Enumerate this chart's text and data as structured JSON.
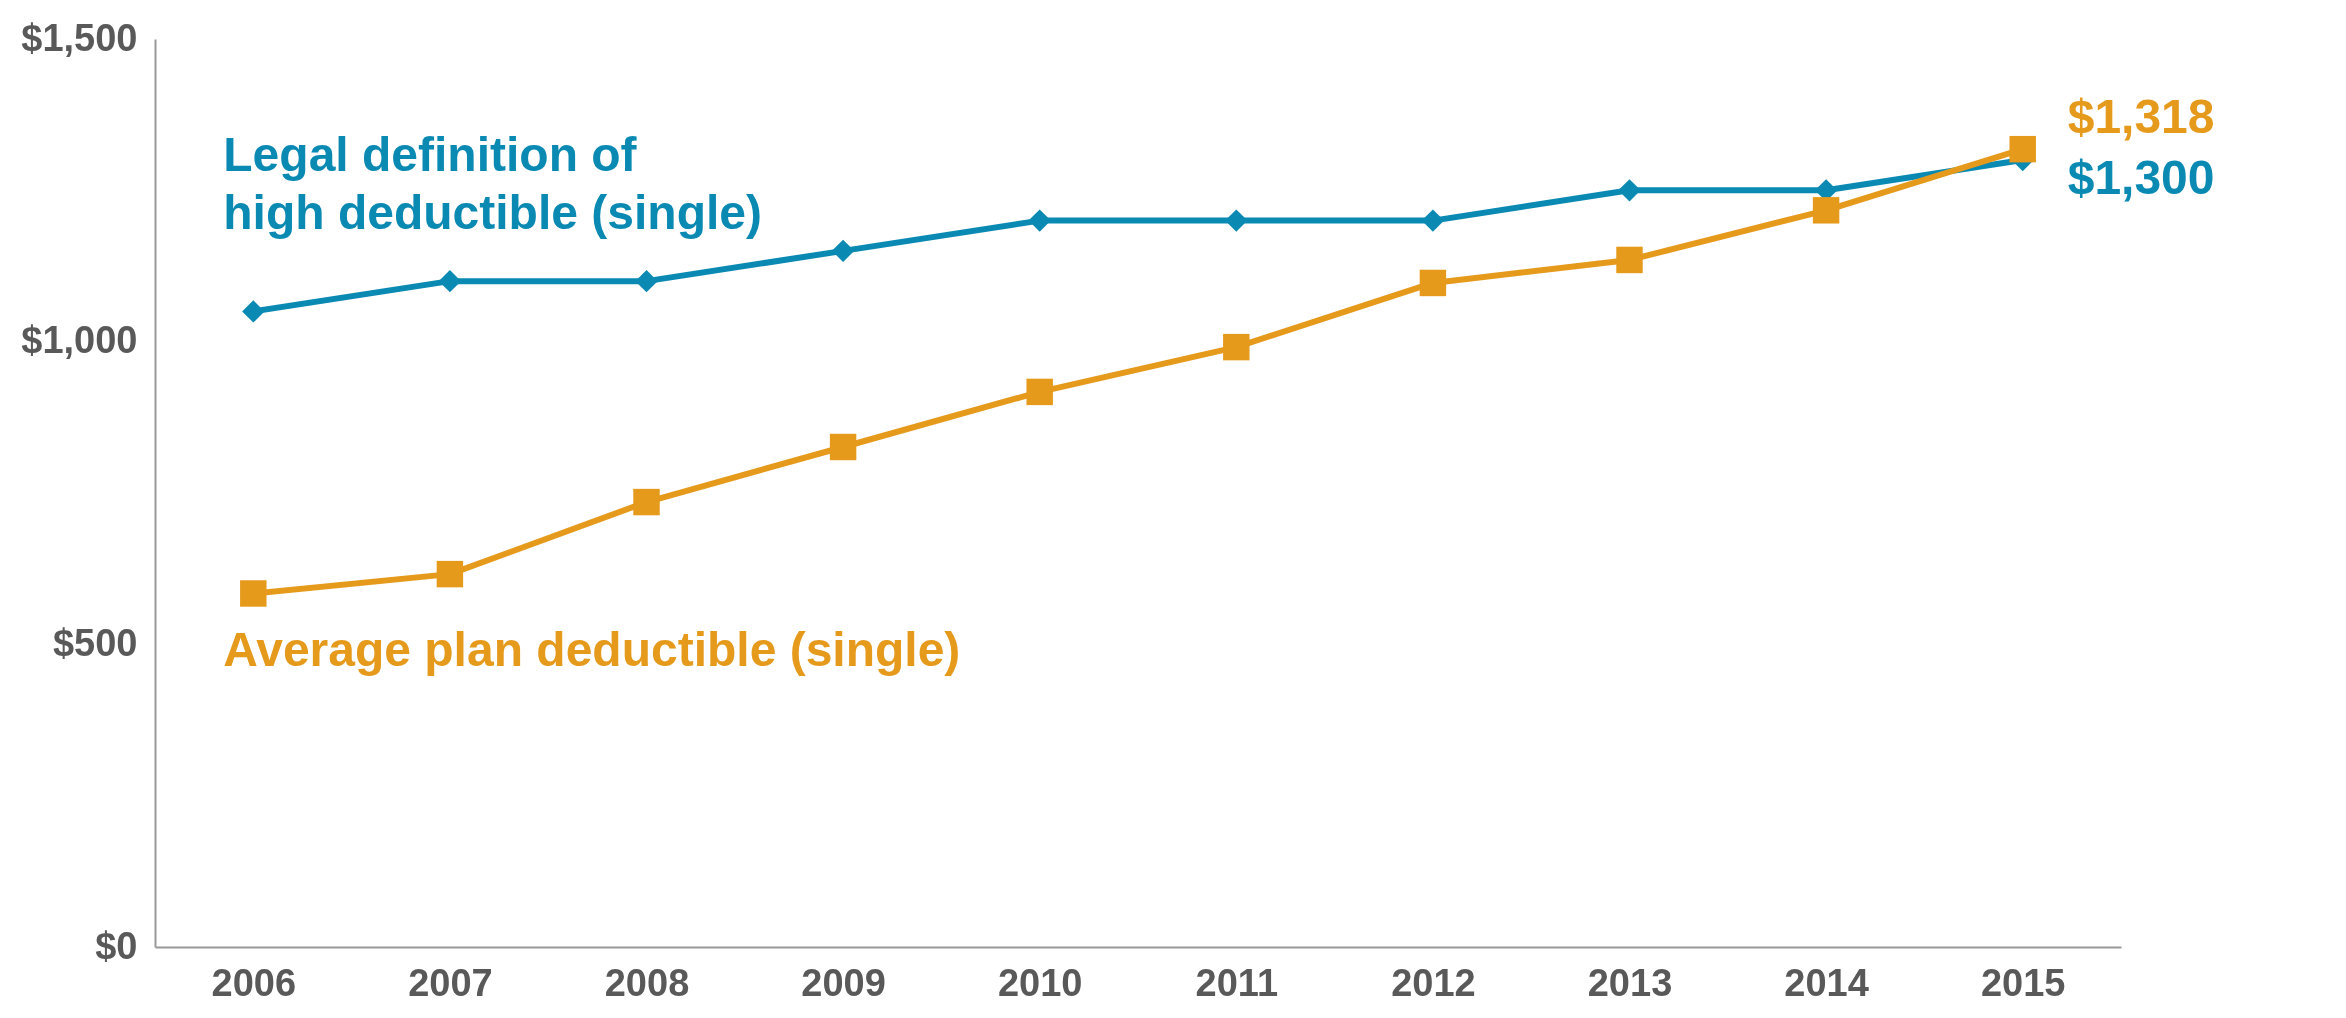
{
  "chart_data": {
    "type": "line",
    "categories": [
      "2006",
      "2007",
      "2008",
      "2009",
      "2010",
      "2011",
      "2012",
      "2013",
      "2014",
      "2015"
    ],
    "series": [
      {
        "name": "Legal definition of\nhigh deductible (single)",
        "color": "#0a8ab3",
        "marker": "diamond",
        "values": [
          1050,
          1100,
          1100,
          1150,
          1200,
          1200,
          1200,
          1250,
          1250,
          1300
        ],
        "value_labels": [
          null,
          null,
          null,
          null,
          null,
          null,
          null,
          null,
          null,
          "$1,300"
        ]
      },
      {
        "name": "Average plan deductible (single)",
        "color": "#e59a1c",
        "marker": "square",
        "values": [
          584,
          616,
          735,
          826,
          917,
          991,
          1097,
          1135,
          1217,
          1318
        ],
        "value_labels": [
          null,
          null,
          null,
          null,
          null,
          null,
          null,
          null,
          null,
          "$1,318"
        ]
      }
    ],
    "ylim": [
      0,
      1500
    ],
    "yticks": [
      {
        "value": 0,
        "label": "$0"
      },
      {
        "value": 500,
        "label": "$500"
      },
      {
        "value": 1000,
        "label": "$1,000"
      },
      {
        "value": 1500,
        "label": "$1,500"
      }
    ],
    "grid": false,
    "legend": false
  }
}
